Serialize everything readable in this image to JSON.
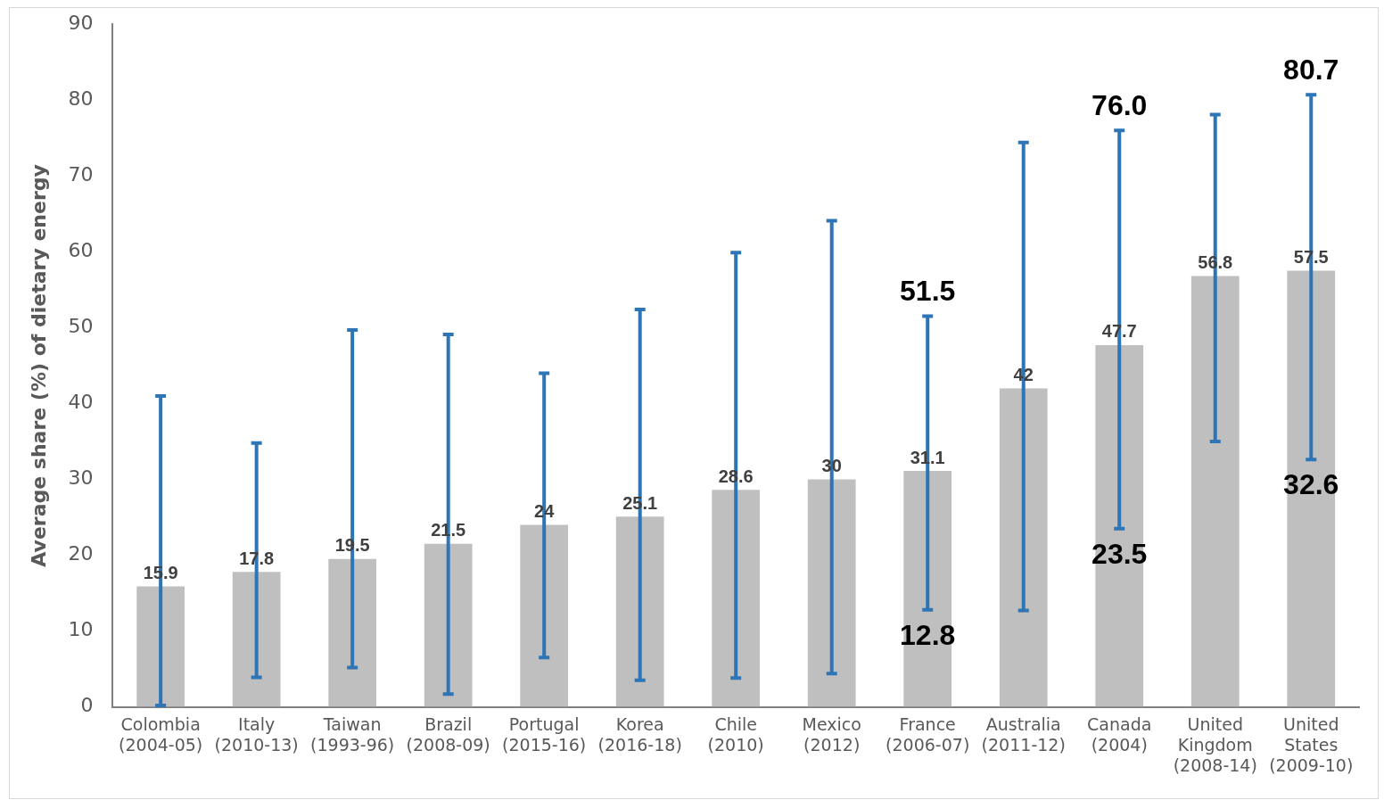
{
  "chart_data": {
    "type": "bar",
    "ylabel": "Average share (%) of dietary energy",
    "categories": [
      "Colombia (2004-05)",
      "Italy (2010-13)",
      "Taiwan (1993-96)",
      "Brazil (2008-09)",
      "Portugal (2015-16)",
      "Korea (2016-18)",
      "Chile (2010)",
      "Mexico (2012)",
      "France (2006-07)",
      "Australia (2011-12)",
      "Canada (2004)",
      "United Kingdom (2008-14)",
      "United States (2009-10)"
    ],
    "values": [
      15.9,
      17.8,
      19.5,
      21.5,
      24,
      25.1,
      28.6,
      30,
      31.1,
      42,
      47.7,
      56.8,
      57.5
    ],
    "color": "#bfbfbf",
    "errors": [
      [
        0.2,
        41.0
      ],
      [
        3.9,
        34.8
      ],
      [
        5.2,
        49.7
      ],
      [
        1.7,
        49.1
      ],
      [
        6.5,
        44.0
      ],
      [
        3.5,
        52.4
      ],
      [
        3.8,
        59.9
      ],
      [
        4.4,
        64.1
      ],
      [
        12.8,
        51.5
      ],
      [
        12.7,
        74.4
      ],
      [
        23.5,
        76.0
      ],
      [
        35.0,
        78.1
      ],
      [
        32.6,
        80.7
      ]
    ],
    "data_labels": true,
    "ylim": [
      0,
      90
    ],
    "yticks": [
      0,
      10,
      20,
      30,
      40,
      50,
      60,
      70,
      80,
      90
    ],
    "grid": false,
    "legend": false,
    "annotations": [
      {
        "text": "51.5",
        "x": "France (2006-07)",
        "y": 51.5
      },
      {
        "text": "12.8",
        "x": "France (2006-07)",
        "y": 12.8
      },
      {
        "text": "76.0",
        "x": "Canada (2004)",
        "y": 76.0
      },
      {
        "text": "23.5",
        "x": "Canada (2004)",
        "y": 23.5
      },
      {
        "text": "80.7",
        "x": "United States (2009-10)",
        "y": 80.7
      },
      {
        "text": "32.6",
        "x": "United States (2009-10)",
        "y": 32.6
      }
    ]
  }
}
